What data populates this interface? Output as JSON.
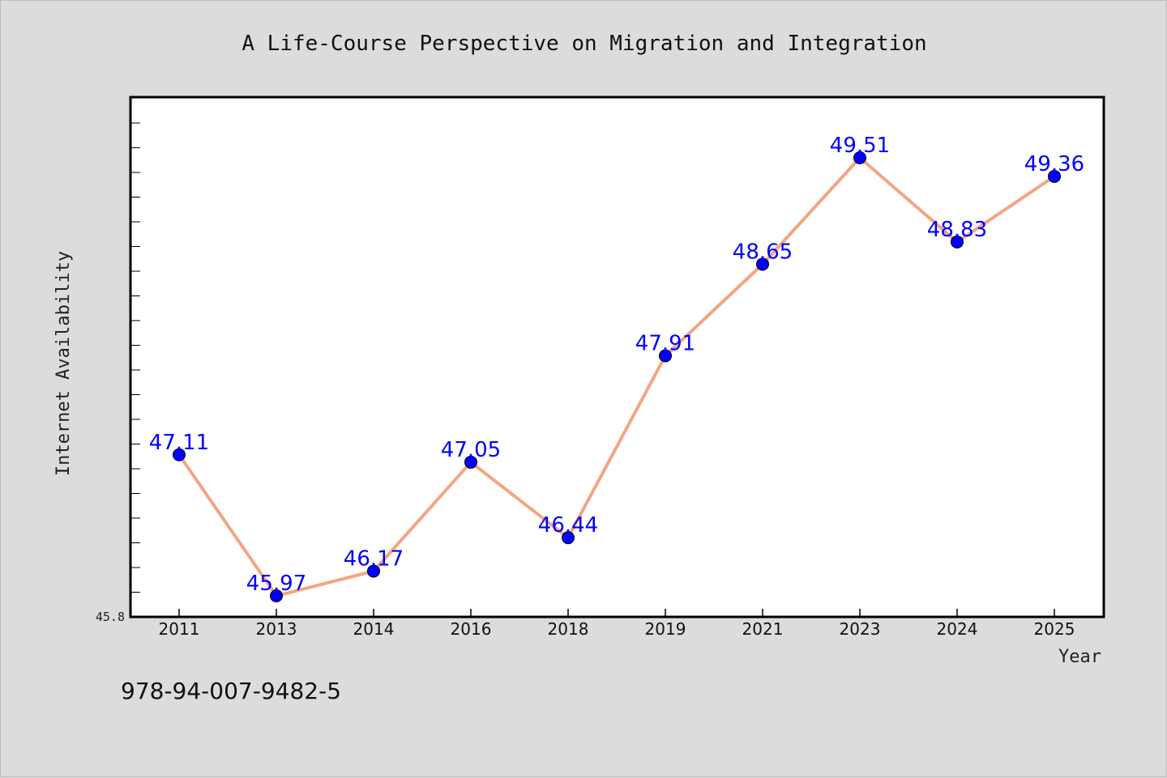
{
  "chart_data": {
    "type": "line",
    "title": "A Life-Course Perspective on Migration and Integration",
    "xlabel": "Year",
    "ylabel": "Internet Availability",
    "categories": [
      "2011",
      "2013",
      "2014",
      "2016",
      "2018",
      "2019",
      "2021",
      "2023",
      "2024",
      "2025"
    ],
    "series": [
      {
        "values": [
          47.11,
          45.97,
          46.17,
          47.05,
          46.44,
          47.91,
          48.65,
          49.51,
          48.83,
          49.36
        ]
      }
    ],
    "data_labels": [
      "47.11",
      "45.97",
      "46.17",
      "47.05",
      "46.44",
      "47.91",
      "48.65",
      "49.51",
      "48.83",
      "49.36"
    ],
    "ylim": [
      45.8,
      50.0
    ],
    "yticks_labeled": [
      "45.8"
    ],
    "grid": false,
    "legend": "none",
    "colors": {
      "line": "#f4a582",
      "marker": "#0000ff",
      "label": "#0000ff",
      "plot_bg": "#ffffff",
      "page_bg": "#dcdcdc"
    }
  },
  "footer": {
    "isbn": "978-94-007-9482-5"
  }
}
